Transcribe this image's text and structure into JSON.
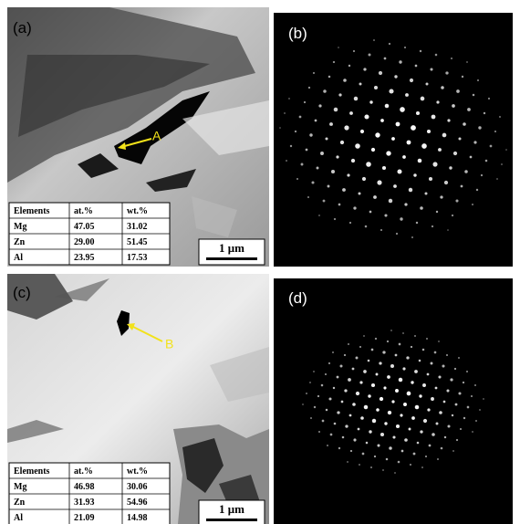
{
  "panels": [
    {
      "label": "(a)",
      "marker": "A",
      "scale_bar": "1 μm",
      "table": {
        "header": [
          "Elements",
          "at.%",
          "wt.%"
        ],
        "rows": [
          [
            "Mg",
            "47.05",
            "31.02"
          ],
          [
            "Zn",
            "29.00",
            "51.45"
          ],
          [
            "Al",
            "23.95",
            "17.53"
          ]
        ]
      }
    },
    {
      "label": "(b)"
    },
    {
      "label": "(c)",
      "marker": "B",
      "scale_bar": "1 μm",
      "table": {
        "header": [
          "Elements",
          "at.%",
          "wt.%"
        ],
        "rows": [
          [
            "Mg",
            "46.98",
            "30.06"
          ],
          [
            "Zn",
            "31.93",
            "54.96"
          ],
          [
            "Al",
            "21.09",
            "14.98"
          ]
        ]
      }
    },
    {
      "label": "(d)"
    }
  ]
}
